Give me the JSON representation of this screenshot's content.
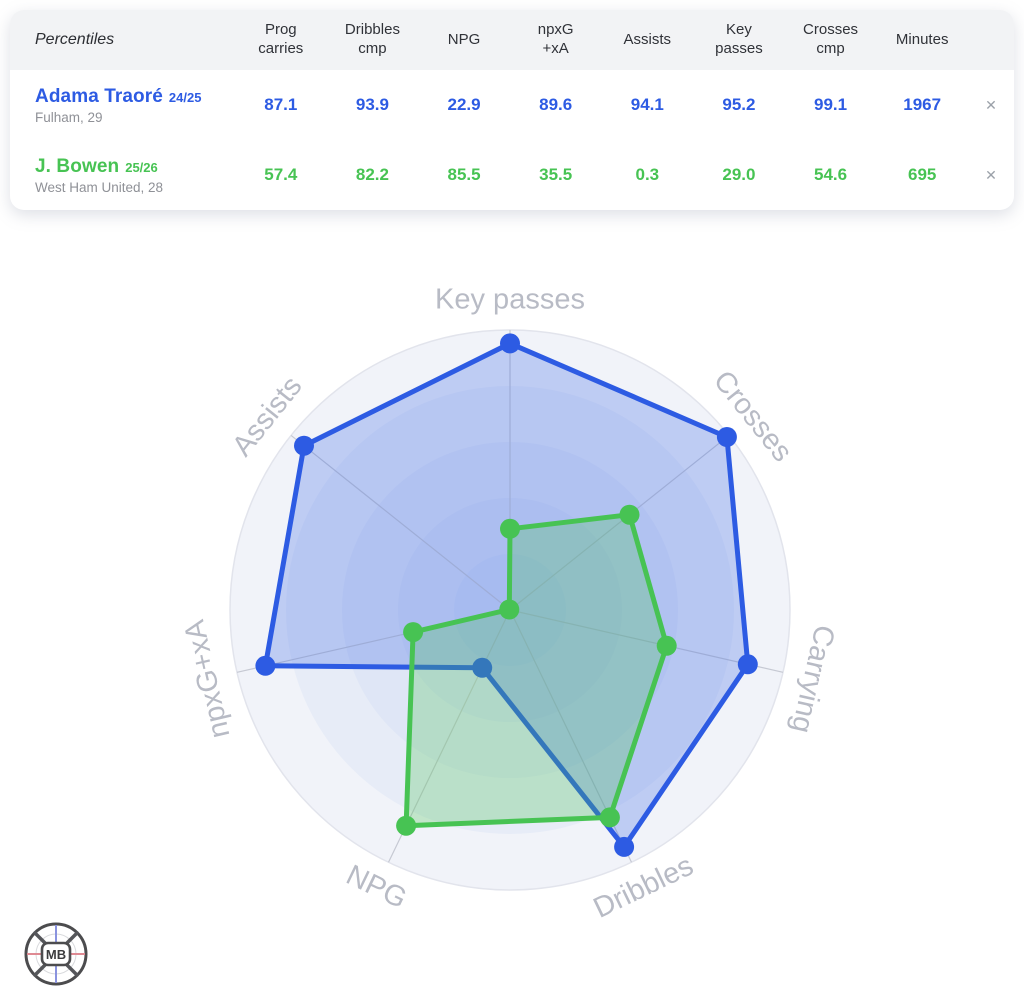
{
  "table": {
    "title": "Percentiles",
    "columns": [
      "Prog\ncarries",
      "Dribbles\ncmp",
      "NPG",
      "npxG\n+xA",
      "Assists",
      "Key\npasses",
      "Crosses\ncmp",
      "Minutes"
    ],
    "close_label": "✕",
    "rows": [
      {
        "name": "Adama Traoré",
        "season": "24/25",
        "club": "Fulham, 29",
        "color": "#2d5be3",
        "values": [
          "87.1",
          "93.9",
          "22.9",
          "89.6",
          "94.1",
          "95.2",
          "99.1",
          "1967"
        ]
      },
      {
        "name": "J. Bowen",
        "season": "25/26",
        "club": "West Ham United, 28",
        "color": "#47c353",
        "values": [
          "57.4",
          "82.2",
          "85.5",
          "35.5",
          "0.3",
          "29.0",
          "54.6",
          "695"
        ]
      }
    ]
  },
  "chart_data": {
    "type": "radar",
    "axes": [
      "Key passes",
      "Crosses",
      "Carrying",
      "Dribbles",
      "NPG",
      "npxG+xA",
      "Assists"
    ],
    "scale_min": 0,
    "scale_max": 100,
    "grid_rings": 5,
    "legend_position": "none",
    "label_color": "#b8bbc5",
    "spoke_color": "#c6c9d3",
    "ring_base_fill": "#f1f3f9",
    "ring_step_fill": "rgba(170,192,238,0.13)",
    "ring_edge_color": "#e2e4ec",
    "series": [
      {
        "name": "Adama Traoré 24/25",
        "color": "#2d5be3",
        "fill_opacity": 0.26,
        "values": [
          95.2,
          99.1,
          87.1,
          93.9,
          22.9,
          89.6,
          94.1
        ]
      },
      {
        "name": "J. Bowen 25/26",
        "color": "#47c353",
        "fill_opacity": 0.28,
        "values": [
          29.0,
          54.6,
          57.4,
          82.2,
          85.5,
          35.5,
          0.3
        ]
      }
    ]
  },
  "logo": {
    "text": "MB"
  }
}
